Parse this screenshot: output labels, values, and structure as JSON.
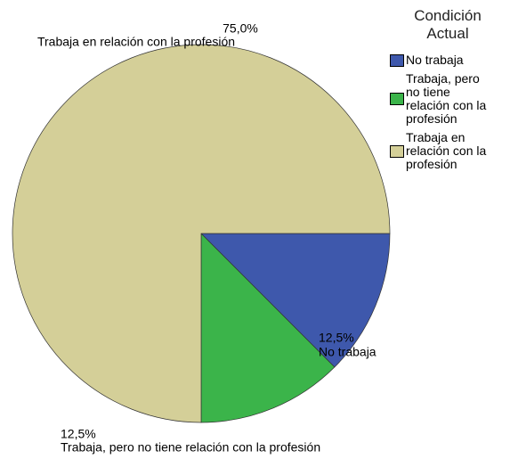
{
  "chart_data": {
    "type": "pie",
    "legend_title": "Condición Actual",
    "categories": [
      "No trabaja",
      "Trabaja, pero no tiene relación con la profesión",
      "Trabaja en relación con la profesión"
    ],
    "values": [
      12.5,
      12.5,
      75.0
    ],
    "value_labels": [
      "12,5%",
      "12,5%",
      "75,0%"
    ],
    "colors": [
      "#3e58ac",
      "#3bb44a",
      "#d4cf98"
    ],
    "legend": "right"
  }
}
